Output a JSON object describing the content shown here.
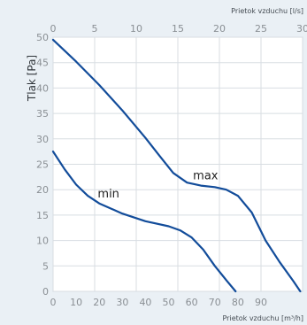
{
  "chart_data": {
    "type": "line",
    "title": "",
    "ylabel": "Tlak [Pa]",
    "xlabel": "Prietok vzduchu [m³/h]",
    "x2label": "Prietok vzduchu [l/s]",
    "xlim": [
      0,
      108
    ],
    "ylim": [
      0,
      50
    ],
    "x_ticks": [
      0,
      10,
      20,
      30,
      40,
      50,
      60,
      70,
      80,
      90
    ],
    "x2_ticks": [
      0,
      5,
      10,
      15,
      20,
      25,
      30
    ],
    "y_ticks": [
      0,
      5,
      10,
      15,
      20,
      25,
      30,
      35,
      40,
      45,
      50
    ],
    "grid": true,
    "legend": "none",
    "line_color": "#124c9a",
    "series": [
      {
        "name": "max",
        "points": [
          [
            0,
            49.5
          ],
          [
            10,
            45.2
          ],
          [
            20,
            40.6
          ],
          [
            30,
            35.6
          ],
          [
            40,
            30.2
          ],
          [
            46,
            26.7
          ],
          [
            52,
            23.3
          ],
          [
            58,
            21.4
          ],
          [
            64,
            20.8
          ],
          [
            70,
            20.5
          ],
          [
            75,
            20.0
          ],
          [
            80,
            18.8
          ],
          [
            86,
            15.5
          ],
          [
            92,
            10.0
          ],
          [
            98,
            5.8
          ],
          [
            104,
            2.0
          ],
          [
            107,
            0
          ]
        ]
      },
      {
        "name": "min",
        "points": [
          [
            0,
            27.5
          ],
          [
            5,
            24.0
          ],
          [
            10,
            21.0
          ],
          [
            15,
            18.8
          ],
          [
            20,
            17.3
          ],
          [
            30,
            15.3
          ],
          [
            40,
            13.8
          ],
          [
            50,
            12.8
          ],
          [
            55,
            12.0
          ],
          [
            60,
            10.6
          ],
          [
            65,
            8.2
          ],
          [
            70,
            5.0
          ],
          [
            75,
            2.2
          ],
          [
            79,
            0
          ]
        ]
      }
    ]
  }
}
